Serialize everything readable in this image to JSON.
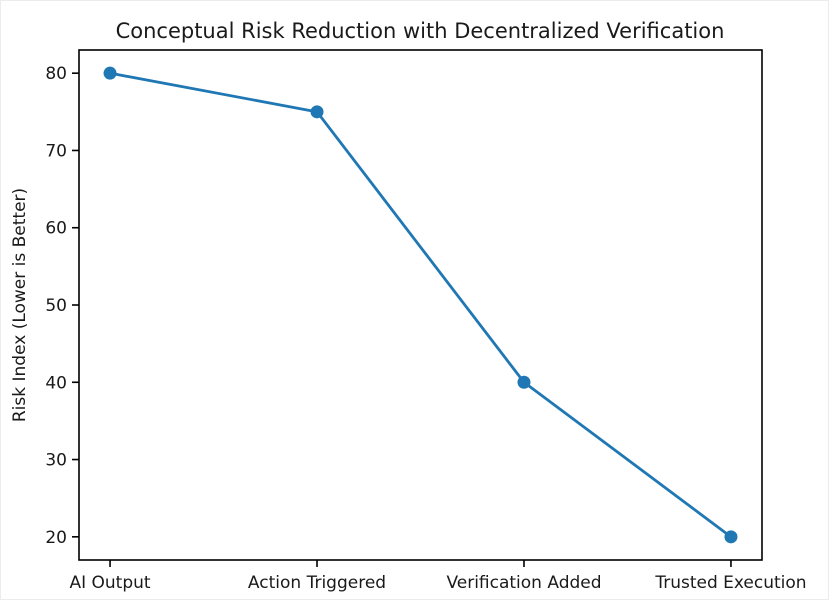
{
  "chart_data": {
    "type": "line",
    "title": "Conceptual Risk Reduction with Decentralized Verification",
    "categories": [
      "AI Output",
      "Action Triggered",
      "Verification Added",
      "Trusted Execution"
    ],
    "values": [
      80,
      75,
      40,
      20
    ],
    "series": [
      {
        "name": "Risk Index",
        "values": [
          80,
          75,
          40,
          20
        ]
      }
    ],
    "xlabel": "",
    "ylabel": "Risk Index (Lower is Better)",
    "yticks": [
      20,
      30,
      40,
      50,
      60,
      70,
      80
    ],
    "ylim": [
      17,
      83
    ],
    "grid": false,
    "legend_position": "none",
    "line_color": "#1f77b4",
    "marker": "circle",
    "marker_color": "#1f77b4",
    "background_color": "#ffffff",
    "text_color": "#1a1a1a",
    "spine_color": "#000000"
  }
}
